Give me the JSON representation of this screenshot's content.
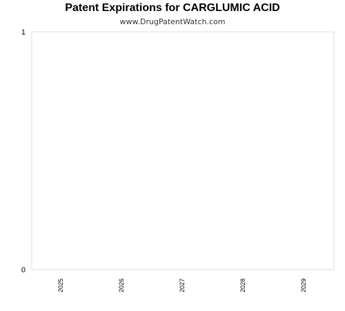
{
  "chart_data": {
    "type": "bar",
    "title": "Patent Expirations for CARGLUMIC ACID",
    "subtitle": "www.DrugPatentWatch.com",
    "xlabel": "",
    "ylabel": "",
    "categories": [
      "2025",
      "2026",
      "2027",
      "2028",
      "2029"
    ],
    "values": [
      0,
      0,
      0,
      0,
      0
    ],
    "ylim": [
      0,
      1
    ],
    "y_ticks": [
      "0",
      "1"
    ],
    "grid": false,
    "legend": "none",
    "colors": {
      "axis": "#dddddd",
      "tick_text": "#000000"
    }
  }
}
